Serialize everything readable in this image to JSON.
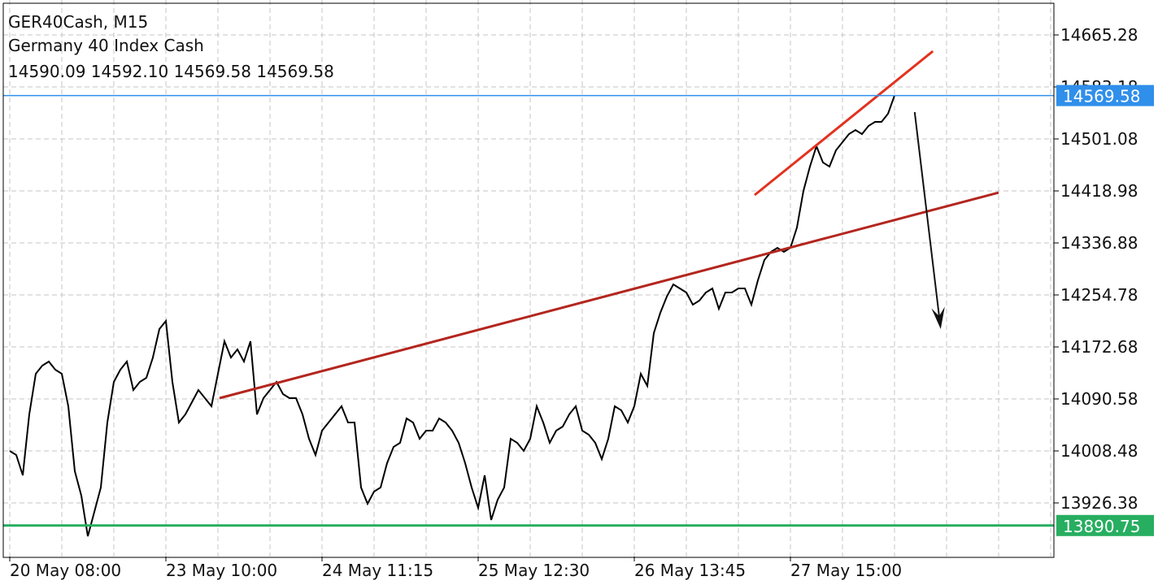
{
  "chart_data": {
    "type": "line",
    "symbol": "GER40Cash, M15",
    "title": "Germany 40 Index Cash",
    "ohlc_text": "14590.09 14592.10 14569.58 14569.58",
    "color": "#000000",
    "grid": true,
    "categories": [
      "20 May 08:00",
      null,
      null,
      null,
      null,
      null,
      null,
      null,
      null,
      null,
      null,
      null,
      null,
      null,
      null,
      null,
      null,
      null,
      null,
      null,
      null,
      null,
      null,
      null,
      "23 May 10:00",
      null,
      null,
      null,
      null,
      null,
      null,
      null,
      null,
      null,
      null,
      null,
      null,
      null,
      null,
      null,
      null,
      null,
      null,
      null,
      null,
      null,
      null,
      null,
      "24 May 11:15",
      null,
      null,
      null,
      null,
      null,
      null,
      null,
      null,
      null,
      null,
      null,
      null,
      null,
      null,
      null,
      null,
      null,
      null,
      null,
      null,
      null,
      null,
      null,
      "25 May 12:30",
      null,
      null,
      null,
      null,
      null,
      null,
      null,
      null,
      null,
      null,
      null,
      null,
      null,
      null,
      null,
      null,
      null,
      null,
      null,
      null,
      null,
      null,
      null,
      "26 May 13:45",
      null,
      null,
      null,
      null,
      null,
      null,
      null,
      null,
      null,
      null,
      null,
      null,
      null,
      null,
      null,
      null,
      null,
      null,
      null,
      null,
      null,
      null,
      null,
      "27 May 15:00",
      null,
      null,
      null,
      null,
      null,
      null,
      null,
      null,
      null,
      null,
      null,
      null,
      null,
      null,
      null,
      null,
      null,
      null,
      null,
      null,
      null,
      null,
      null,
      null,
      null,
      null,
      null,
      null,
      null,
      null,
      null,
      null,
      null,
      null,
      null,
      null,
      null,
      null,
      null,
      null
    ],
    "values": [
      14008.49,
      14002.07,
      13970.0,
      14066.2,
      14130.35,
      14143.18,
      14149.6,
      14136.77,
      14130.35,
      14079.04,
      13976.42,
      13937.93,
      13873.79,
      13912.28,
      13950.76,
      14053.38,
      14117.52,
      14136.77,
      14149.6,
      14104.7,
      14117.52,
      14123.94,
      14156.0,
      14200.9,
      14213.7,
      14117.52,
      14053.38,
      14066.2,
      14085.45,
      14104.7,
      14091.87,
      14079.04,
      14130.35,
      14181.66,
      14156.0,
      14168.84,
      14149.6,
      14181.66,
      14066.2,
      14091.87,
      14104.7,
      14117.52,
      14098.28,
      14091.87,
      14091.87,
      14066.2,
      14027.73,
      14002.07,
      14040.56,
      14053.38,
      14066.2,
      14079.04,
      14053.38,
      14053.38,
      13950.76,
      13925.1,
      13944.35,
      13950.76,
      13989.24,
      14014.9,
      14021.31,
      14059.8,
      14053.38,
      14027.73,
      14040.56,
      14040.56,
      14059.8,
      14053.38,
      14040.56,
      14021.31,
      13989.24,
      13950.76,
      13918.69,
      13970.0,
      13899.45,
      13931.5,
      13950.76,
      14027.73,
      14021.31,
      14008.49,
      14027.73,
      14079.04,
      14053.38,
      14021.31,
      14040.56,
      14046.97,
      14066.2,
      14079.04,
      14040.56,
      14034.1,
      14021.31,
      13995.66,
      14027.73,
      14079.04,
      14072.6,
      14053.38,
      14079.04,
      14130.35,
      14111.1,
      14194.5,
      14226.56,
      14252.22,
      14271.46,
      14265.05,
      14258.63,
      14239.39,
      14245.8,
      14258.63,
      14265.05,
      14232.98,
      14258.63,
      14258.63,
      14265.05,
      14265.05,
      14239.39,
      14277.87,
      14309.94,
      14322.77,
      14329.19,
      14322.77,
      14329.19,
      14361.26,
      14418.98,
      14457.47,
      14489.54,
      14463.88,
      14457.47,
      14483.12,
      14495.95,
      14508.78,
      14515.19,
      14508.78,
      14521.61,
      14528.02,
      14528.02,
      14540.85,
      14569.58,
      null,
      null,
      null,
      null,
      null,
      null,
      null,
      null,
      null,
      null,
      null,
      null,
      null,
      null,
      null,
      null,
      null,
      null,
      null,
      null,
      null,
      null,
      null,
      null
    ],
    "ylim": [
      13841.73,
      14720.44
    ],
    "yticks": [
      13926.38,
      14008.48,
      14090.58,
      14172.68,
      14254.78,
      14336.88,
      14418.98,
      14501.08,
      14583.18,
      14665.28
    ],
    "price_lines": [
      {
        "value": 14569.58,
        "color": "#2f8fea"
      },
      {
        "value": 13890.75,
        "color": "#27ae60"
      }
    ],
    "trendlines": [
      {
        "color": "#b3261e",
        "x": [
          32.25,
          152
        ],
        "y": [
          14091.87,
          14416.4
        ]
      },
      {
        "color": "#e2321f",
        "x": [
          114.5,
          141.9
        ],
        "y": [
          14412.57,
          14639.6
        ]
      }
    ],
    "arrows": [
      {
        "color": "#111111",
        "x": [
          139.1,
          143.1
        ],
        "y": [
          14543.4,
          14200.9
        ]
      }
    ]
  }
}
